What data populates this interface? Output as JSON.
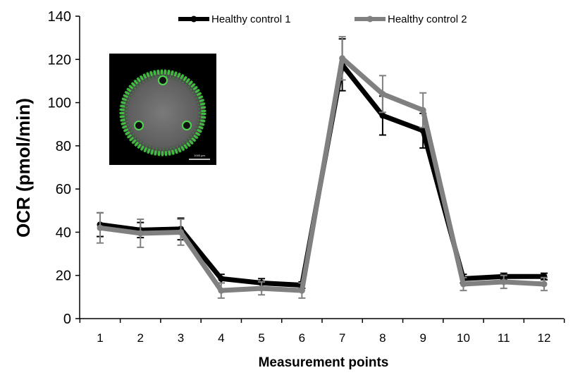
{
  "chart_data": {
    "type": "line",
    "title": "",
    "xlabel": "Measurement points",
    "ylabel": "OCR (pmol/min)",
    "ylim": [
      0,
      140
    ],
    "yticks": [
      0,
      20,
      40,
      60,
      80,
      100,
      120,
      140
    ],
    "categories": [
      "1",
      "2",
      "3",
      "4",
      "5",
      "6",
      "7",
      "8",
      "9",
      "10",
      "11",
      "12"
    ],
    "grid": false,
    "legend_position": "top",
    "series": [
      {
        "name": "Healthy control 1",
        "color": "#000000",
        "values": [
          43.5,
          41,
          41.5,
          18.5,
          16.5,
          15.5,
          117.5,
          94,
          87,
          18.5,
          19.5,
          19.5
        ],
        "errors": [
          5.5,
          3.5,
          5,
          2,
          2,
          1.5,
          12,
          9,
          8,
          2,
          1.5,
          1.5
        ]
      },
      {
        "name": "Healthy control 2",
        "color": "#808080",
        "values": [
          42,
          39.5,
          40,
          13,
          14,
          13,
          120.5,
          104,
          96.5,
          16,
          17,
          16
        ],
        "errors": [
          7,
          6.5,
          6,
          3.5,
          3,
          3.5,
          10,
          8.5,
          8,
          3,
          3,
          3
        ]
      }
    ],
    "inset": {
      "description": "fluorescence micrograph of well",
      "scale_bar_label": "1000 µm"
    }
  }
}
